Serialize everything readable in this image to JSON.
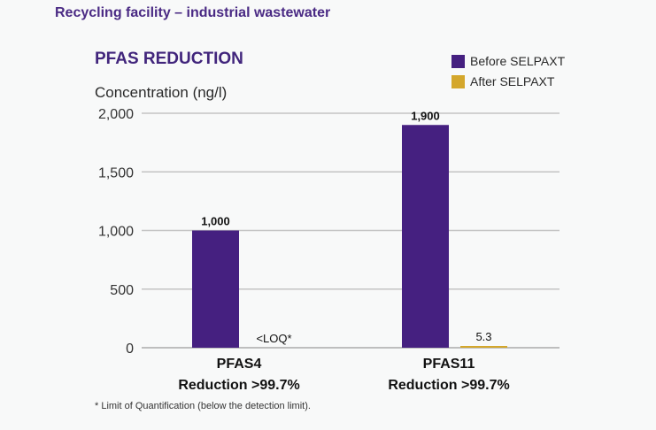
{
  "page": {
    "subtitle": "Recycling facility – industrial wastewater",
    "footnote": "* Limit of Quantification (below the detection limit)."
  },
  "chart_data": {
    "type": "bar",
    "title": "PFAS REDUCTION",
    "ylabel": "Concentration (ng/l)",
    "xlabel": "",
    "ylim": [
      0,
      2000
    ],
    "yticks": [
      0,
      500,
      1000,
      1500,
      2000
    ],
    "ytick_labels": [
      "0",
      "500",
      "1,000",
      "1,500",
      "2,000"
    ],
    "grid": true,
    "legend_position": "top-right",
    "categories": [
      "PFAS4",
      "PFAS11"
    ],
    "category_sublabels": [
      "Reduction >99.7%",
      "Reduction >99.7%"
    ],
    "series": [
      {
        "name": "Before SELPAXT",
        "color": "#452080",
        "values": [
          1000,
          1900
        ],
        "labels": [
          "1,000",
          "1,900"
        ]
      },
      {
        "name": "After SELPAXT",
        "color": "#d4a72c",
        "values": [
          0,
          5.3
        ],
        "labels": [
          "<LOQ*",
          "5.3"
        ]
      }
    ]
  }
}
